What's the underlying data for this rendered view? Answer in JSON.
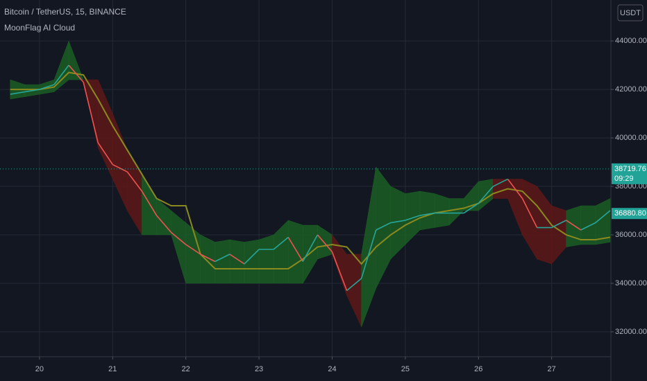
{
  "header": {
    "symbol": "Bitcoin / TetherUS, 15, BINANCE",
    "indicator": "MoonFlag AI Cloud",
    "currency": "USDT"
  },
  "chart_data": {
    "type": "line",
    "x": [
      19.6,
      19.8,
      20.0,
      20.2,
      20.4,
      20.6,
      20.8,
      21.0,
      21.2,
      21.4,
      21.6,
      21.8,
      22.0,
      22.2,
      22.4,
      22.6,
      22.8,
      23.0,
      23.2,
      23.4,
      23.6,
      23.8,
      24.0,
      24.2,
      24.4,
      24.6,
      24.8,
      25.0,
      25.2,
      25.4,
      25.6,
      25.8,
      26.0,
      26.2,
      26.4,
      26.6,
      26.8,
      27.0,
      27.2,
      27.4,
      27.6,
      27.8
    ],
    "xlim": [
      19.46,
      27.81
    ],
    "xticks": [
      20,
      21,
      22,
      23,
      24,
      25,
      26,
      27
    ],
    "ylim": [
      30970,
      45690
    ],
    "yticks": [
      {
        "value": 32000,
        "label": "32000.00"
      },
      {
        "value": 34000,
        "label": "34000.00"
      },
      {
        "value": 36000,
        "label": "36000.00"
      },
      {
        "value": 38000,
        "label": "38000.00"
      },
      {
        "value": 40000,
        "label": "40000.00"
      },
      {
        "value": 42000,
        "label": "42000.00"
      },
      {
        "value": 44000,
        "label": "44000.00"
      }
    ],
    "grid": true,
    "price": {
      "values": [
        41800,
        41900,
        42000,
        42200,
        43000,
        42300,
        39800,
        38900,
        38600,
        37800,
        36800,
        36100,
        35600,
        35200,
        34900,
        35200,
        34800,
        35400,
        35400,
        35900,
        34900,
        36000,
        35300,
        33700,
        34200,
        36200,
        36500,
        36600,
        36800,
        36900,
        36900,
        36900,
        37300,
        38000,
        38300,
        37500,
        36300,
        36300,
        36600,
        36200,
        36500,
        37000
      ],
      "up_color": "#26a69a",
      "down_color": "#ef5350"
    },
    "cloud": {
      "upper": [
        42400,
        42200,
        42200,
        42400,
        44000,
        42400,
        42400,
        41000,
        39500,
        38500,
        37500,
        37000,
        36500,
        36000,
        35700,
        35800,
        35700,
        35800,
        36000,
        36600,
        36400,
        36400,
        36000,
        35200,
        35200,
        38800,
        38000,
        37700,
        37800,
        37700,
        37500,
        37500,
        38200,
        38300,
        38300,
        38300,
        38000,
        37200,
        37000,
        37200,
        37200,
        37500
      ],
      "lower": [
        41600,
        41700,
        41800,
        41900,
        42400,
        42400,
        39600,
        38300,
        37000,
        36000,
        36000,
        36000,
        34000,
        34000,
        34000,
        34000,
        34000,
        34000,
        34000,
        34000,
        34000,
        35000,
        35200,
        33500,
        32200,
        33800,
        35000,
        35600,
        36200,
        36300,
        36400,
        37000,
        37000,
        37500,
        37500,
        36000,
        35000,
        34800,
        35500,
        35600,
        35600,
        35700
      ],
      "colors": [
        "#1b5e24",
        "#1b5e24",
        "#1b5e24",
        "#1b5e24",
        "#1b5e24",
        "#5e1818",
        "#5e1818",
        "#5e1818",
        "#5e1818",
        "#1b5e24",
        "#1b5e24",
        "#1b5e24",
        "#1b5e24",
        "#1b5e24",
        "#1b5e24",
        "#1b5e24",
        "#1b5e24",
        "#1b5e24",
        "#1b5e24",
        "#1b5e24",
        "#1b5e24",
        "#1b5e24",
        "#5e1818",
        "#5e1818",
        "#1b5e24",
        "#1b5e24",
        "#1b5e24",
        "#1b5e24",
        "#1b5e24",
        "#1b5e24",
        "#1b5e24",
        "#1b5e24",
        "#1b5e24",
        "#5e1818",
        "#5e1818",
        "#5e1818",
        "#5e1818",
        "#5e1818",
        "#1b5e24",
        "#1b5e24",
        "#1b5e24",
        "#1b5e24"
      ]
    },
    "midline": {
      "values": [
        42000,
        42000,
        42000,
        42100,
        42700,
        42600,
        41600,
        40500,
        39500,
        38500,
        37500,
        37200,
        37200,
        35200,
        34600,
        34600,
        34600,
        34600,
        34600,
        34600,
        35000,
        35500,
        35600,
        35500,
        34800,
        35500,
        36000,
        36400,
        36700,
        36900,
        37000,
        37100,
        37300,
        37700,
        37900,
        37800,
        37200,
        36400,
        36000,
        35800,
        35800,
        35900
      ],
      "color": "#8a8a1e"
    },
    "price_labels": [
      {
        "value": 38719.76,
        "label": "38719.76",
        "sub": "09:29",
        "color": "#22a397"
      },
      {
        "value": 36880.8,
        "label": "36880.80",
        "color": "#22a397"
      }
    ]
  }
}
